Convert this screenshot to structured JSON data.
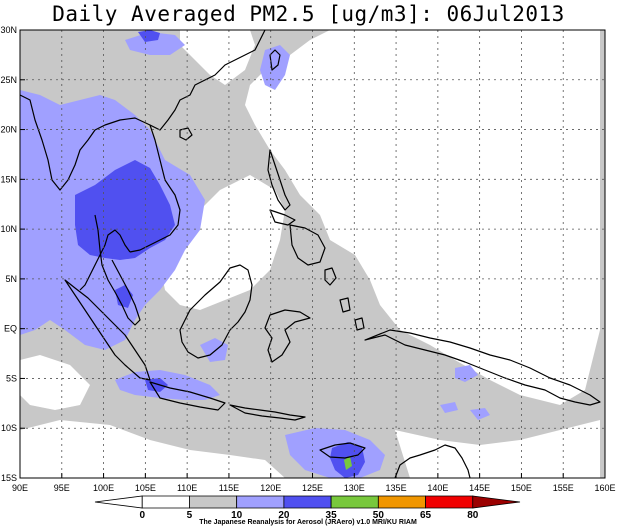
{
  "title": "Daily Averaged PM2.5 [ug/m3]: 06Jul2013",
  "map": {
    "lat_ticks": [
      "30N",
      "25N",
      "20N",
      "15N",
      "10N",
      "5N",
      "EQ",
      "5S",
      "10S",
      "15S"
    ],
    "lon_ticks": [
      "90E",
      "95E",
      "100E",
      "105E",
      "110E",
      "115E",
      "120E",
      "125E",
      "130E",
      "135E",
      "140E",
      "145E",
      "150E",
      "155E",
      "160E"
    ],
    "lat_values": [
      30,
      25,
      20,
      15,
      10,
      5,
      0,
      -5,
      -10,
      -15
    ],
    "lon_values": [
      90,
      95,
      100,
      105,
      110,
      115,
      120,
      125,
      130,
      135,
      140,
      145,
      150,
      155,
      160
    ],
    "extent": {
      "lon_min": 90,
      "lon_max": 160,
      "lat_min": -15,
      "lat_max": 30
    },
    "gridlines": "dashed"
  },
  "colorbar": {
    "levels": [
      "0",
      "5",
      "10",
      "20",
      "35",
      "50",
      "65",
      "80"
    ],
    "colors": [
      "#ffffff",
      "#ffffff",
      "#c8c8c8",
      "#a0a0ff",
      "#5050f0",
      "#78c83c",
      "#f09600",
      "#f00000",
      "#9b0000"
    ],
    "credit": "The Japanese Reanalysis for Aerosol (JRAero) v1.0 MRI/KU RIAM"
  }
}
